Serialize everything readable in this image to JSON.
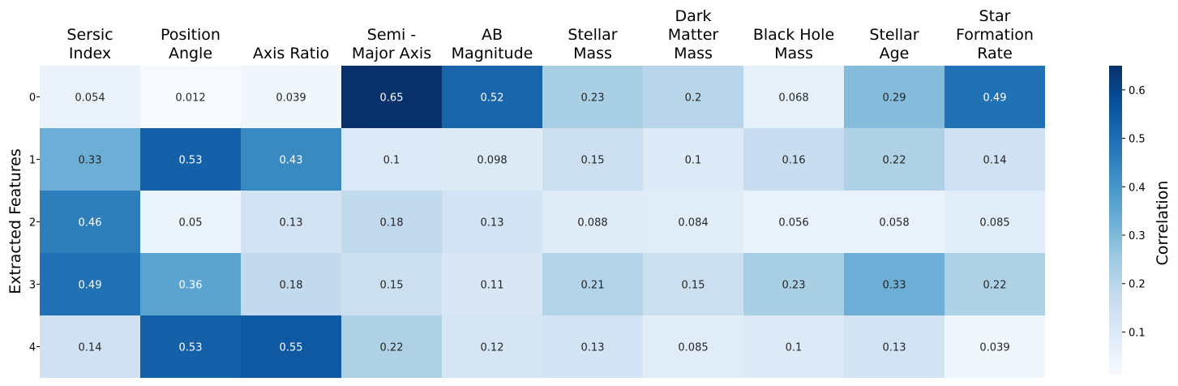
{
  "chart_data": {
    "type": "heatmap",
    "columns": [
      [
        "Sersic",
        "Index"
      ],
      [
        "Position",
        "Angle"
      ],
      [
        "Axis Ratio"
      ],
      [
        "Semi -",
        "Major Axis"
      ],
      [
        "AB",
        "Magnitude"
      ],
      [
        "Stellar",
        "Mass"
      ],
      [
        "Dark",
        "Matter",
        "Mass"
      ],
      [
        "Black Hole",
        "Mass"
      ],
      [
        "Stellar",
        "Age"
      ],
      [
        "Star",
        "Formation",
        "Rate"
      ]
    ],
    "rows": [
      "0",
      "1",
      "2",
      "3",
      "4"
    ],
    "values": [
      [
        0.054,
        0.012,
        0.039,
        0.65,
        0.52,
        0.23,
        0.2,
        0.068,
        0.29,
        0.49
      ],
      [
        0.33,
        0.53,
        0.43,
        0.1,
        0.098,
        0.15,
        0.1,
        0.16,
        0.22,
        0.14
      ],
      [
        0.46,
        0.05,
        0.13,
        0.18,
        0.13,
        0.088,
        0.084,
        0.056,
        0.058,
        0.085
      ],
      [
        0.49,
        0.36,
        0.18,
        0.15,
        0.11,
        0.21,
        0.15,
        0.23,
        0.33,
        0.22
      ],
      [
        0.14,
        0.53,
        0.55,
        0.22,
        0.12,
        0.13,
        0.085,
        0.1,
        0.13,
        0.039
      ]
    ],
    "ylabel": "Extracted Features",
    "colorbar": {
      "label": "Correlation",
      "min": 0.012,
      "max": 0.65,
      "ticks": [
        0.1,
        0.2,
        0.3,
        0.4,
        0.5,
        0.6
      ],
      "tick_labels": [
        "0.1",
        "0.2",
        "0.3",
        "0.4",
        "0.5",
        "0.6"
      ],
      "colormap": "Blues"
    },
    "grid": false,
    "legend": "colorbar-right"
  }
}
